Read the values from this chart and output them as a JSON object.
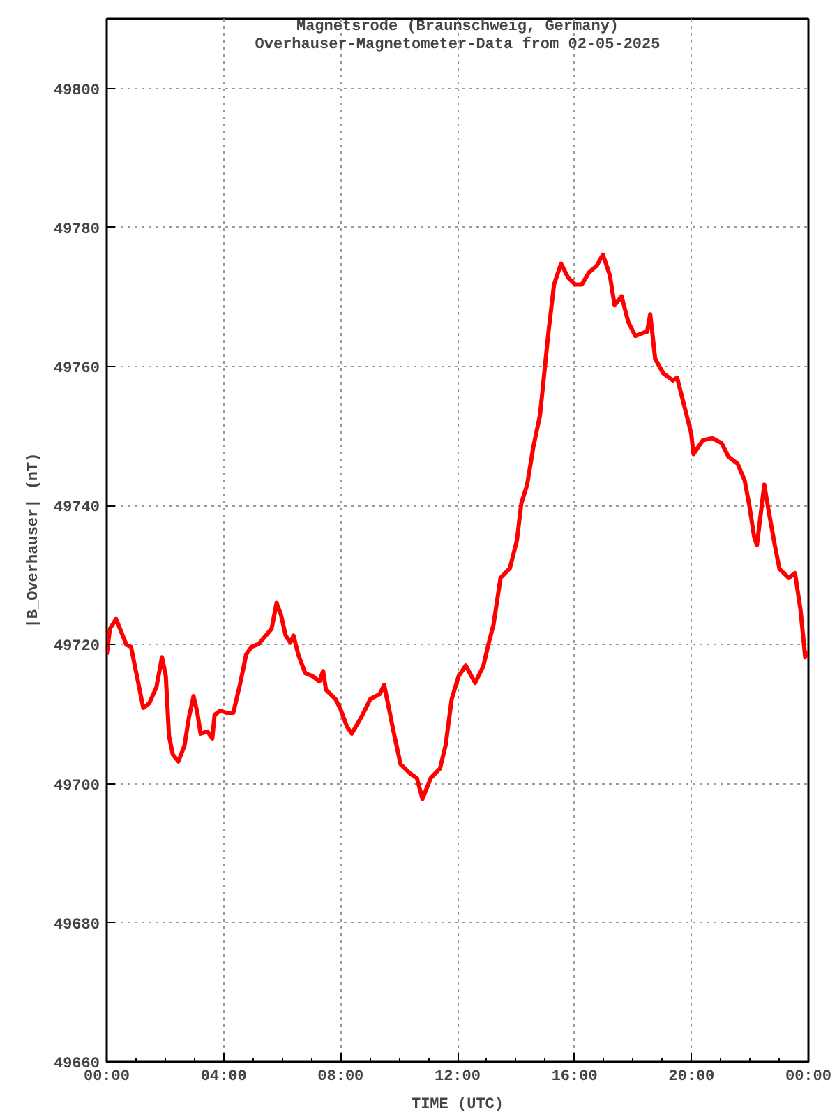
{
  "chart_data": {
    "type": "line",
    "title": "Magnetsrode (Braunschweig, Germany)",
    "subtitle": "Overhauser-Magnetometer-Data from 02-05-2025",
    "xlabel": "TIME (UTC)",
    "ylabel": "|B_Overhauser| (nT)",
    "xlim": [
      0,
      24
    ],
    "ylim": [
      49660,
      49810
    ],
    "xticks": [
      {
        "value": 0,
        "label": "00:00"
      },
      {
        "value": 4,
        "label": "04:00"
      },
      {
        "value": 8,
        "label": "08:00"
      },
      {
        "value": 12,
        "label": "12:00"
      },
      {
        "value": 16,
        "label": "16:00"
      },
      {
        "value": 20,
        "label": "20:00"
      },
      {
        "value": 24,
        "label": "00:00"
      }
    ],
    "yticks": [
      49660,
      49680,
      49700,
      49720,
      49740,
      49760,
      49780,
      49800
    ],
    "grid": true,
    "marker": "none",
    "line_style": "solid",
    "series": [
      {
        "color": "#ff0000",
        "x": [
          0,
          0.11,
          0.32,
          0.51,
          0.67,
          0.83,
          1.06,
          1.25,
          1.46,
          1.7,
          1.89,
          2.02,
          2.13,
          2.26,
          2.45,
          2.66,
          2.81,
          2.97,
          3.1,
          3.21,
          3.45,
          3.61,
          3.69,
          3.88,
          4.09,
          4.33,
          4.57,
          4.77,
          4.96,
          5.2,
          5.44,
          5.64,
          5.81,
          5.96,
          6.12,
          6.28,
          6.39,
          6.55,
          6.79,
          7.03,
          7.27,
          7.4,
          7.5,
          7.82,
          7.98,
          8.22,
          8.38,
          8.7,
          9.02,
          9.34,
          9.49,
          9.65,
          9.81,
          10.05,
          10.37,
          10.61,
          10.8,
          11.08,
          11.4,
          11.59,
          11.8,
          12.04,
          12.28,
          12.6,
          12.88,
          13.07,
          13.23,
          13.47,
          13.79,
          14.03,
          14.18,
          14.38,
          14.59,
          14.82,
          14.95,
          15.11,
          15.3,
          15.54,
          15.78,
          16.02,
          16.25,
          16.49,
          16.76,
          16.97,
          17.21,
          17.37,
          17.61,
          17.84,
          18.08,
          18.32,
          18.48,
          18.59,
          18.76,
          19.04,
          19.36,
          19.51,
          19.75,
          19.99,
          20.07,
          20.39,
          20.71,
          21.03,
          21.27,
          21.58,
          21.82,
          21.98,
          22.14,
          22.24,
          22.49,
          22.65,
          22.85,
          23.01,
          23.33,
          23.54,
          23.73,
          23.89,
          24
        ],
        "values": [
          49718.6,
          49722.3,
          49723.7,
          49721.7,
          49720,
          49719.7,
          49714.9,
          49710.9,
          49711.6,
          49713.9,
          49718.2,
          49715.5,
          49706.9,
          49704.2,
          49703.2,
          49705.5,
          49709.5,
          49712.6,
          49710.2,
          49707.2,
          49707.5,
          49706.5,
          49709.9,
          49710.5,
          49710.2,
          49710.2,
          49714.5,
          49718.6,
          49719.7,
          49720.1,
          49721.3,
          49722.3,
          49726,
          49724.3,
          49721.3,
          49720.3,
          49721.3,
          49718.6,
          49715.9,
          49715.5,
          49714.7,
          49716.2,
          49713.5,
          49712.2,
          49710.9,
          49708.2,
          49707.2,
          49709.5,
          49712.2,
          49712.9,
          49714.2,
          49710.9,
          49707.5,
          49702.8,
          49701.5,
          49700.8,
          49697.8,
          49700.8,
          49702.2,
          49705.5,
          49712.2,
          49715.5,
          49717,
          49714.5,
          49716.9,
          49720.3,
          49722.9,
          49729.6,
          49731,
          49735,
          49740.3,
          49743,
          49748.4,
          49753,
          49758.4,
          49765,
          49771.8,
          49774.8,
          49772.8,
          49771.8,
          49771.8,
          49773.5,
          49774.5,
          49776.1,
          49773.1,
          49768.8,
          49770.1,
          49766.4,
          49764.4,
          49764.8,
          49765,
          49767.5,
          49761.1,
          49759,
          49758,
          49758.4,
          49754.4,
          49750.4,
          49747.4,
          49749.4,
          49749.7,
          49749,
          49747,
          49746,
          49743.6,
          49740,
          49735.6,
          49734.3,
          49743,
          49739,
          49734.3,
          49730.9,
          49729.6,
          49730.3,
          49725,
          49718.2,
          49719
        ]
      }
    ]
  }
}
